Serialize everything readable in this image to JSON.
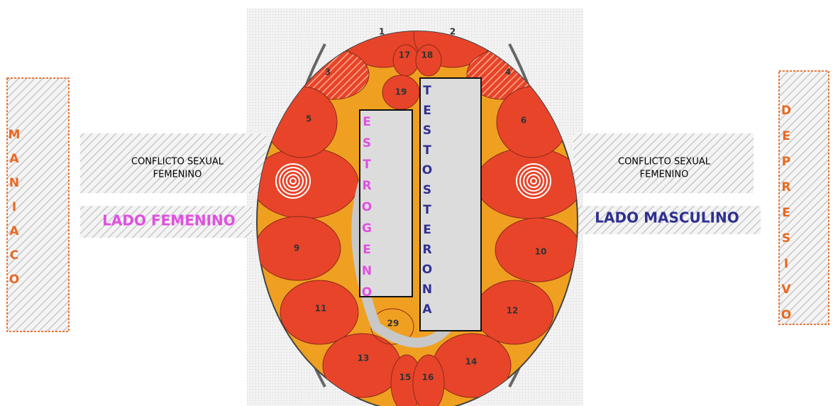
{
  "left_panel": {
    "label": "MANIACO"
  },
  "right_panel": {
    "label": "DEPRESIVO"
  },
  "left_conflict": {
    "lines": [
      "CONFLICTO SEXUAL",
      "FEMENINO"
    ]
  },
  "right_conflict": {
    "lines": [
      "CONFLICTO SEXUAL",
      "FEMENINO"
    ]
  },
  "left_side": {
    "label": "LADO FEMENINO"
  },
  "right_side": {
    "label": "LADO MASCULINO"
  },
  "hormones": {
    "estrogen": "ESTROGENO",
    "testosterone": "TESTOSTERONA"
  },
  "regions": [
    "1",
    "2",
    "17",
    "18",
    "3",
    "4",
    "19",
    "5",
    "6",
    "9",
    "10",
    "11",
    "12",
    "13",
    "14",
    "15",
    "16",
    "29"
  ]
}
